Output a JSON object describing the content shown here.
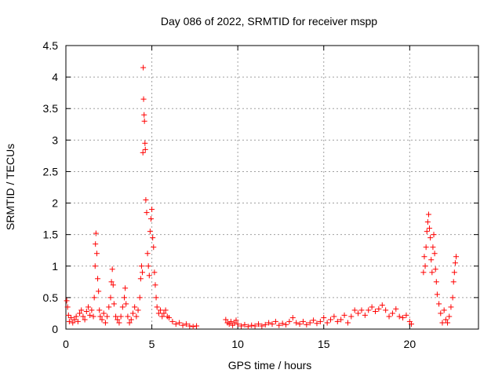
{
  "chart_data": {
    "type": "scatter",
    "title": "Day 086 of 2022, SRMTID for receiver mspp",
    "xlabel": "GPS time / hours",
    "ylabel": "SRMTID / TECUs",
    "xlim": [
      0,
      24
    ],
    "ylim": [
      0,
      4.5
    ],
    "x_ticks": [
      0,
      5,
      10,
      15,
      20
    ],
    "y_ticks": [
      0,
      0.5,
      1,
      1.5,
      2,
      2.5,
      3,
      3.5,
      4,
      4.5
    ],
    "grid": true,
    "marker": "+",
    "marker_color": "#ff0000",
    "series": [
      {
        "name": "SRMTID",
        "points": [
          [
            0.05,
            0.45
          ],
          [
            0.1,
            0.35
          ],
          [
            0.15,
            0.22
          ],
          [
            0.2,
            0.12
          ],
          [
            0.3,
            0.18
          ],
          [
            0.4,
            0.1
          ],
          [
            0.5,
            0.15
          ],
          [
            0.6,
            0.2
          ],
          [
            0.7,
            0.12
          ],
          [
            0.8,
            0.25
          ],
          [
            0.9,
            0.3
          ],
          [
            1.0,
            0.2
          ],
          [
            1.1,
            0.15
          ],
          [
            1.2,
            0.28
          ],
          [
            1.3,
            0.35
          ],
          [
            1.4,
            0.22
          ],
          [
            1.5,
            0.3
          ],
          [
            1.6,
            0.2
          ],
          [
            1.65,
            0.5
          ],
          [
            1.7,
            1.0
          ],
          [
            1.72,
            1.35
          ],
          [
            1.75,
            1.52
          ],
          [
            1.8,
            1.2
          ],
          [
            1.85,
            0.8
          ],
          [
            1.9,
            0.6
          ],
          [
            1.95,
            0.3
          ],
          [
            2.0,
            0.2
          ],
          [
            2.1,
            0.15
          ],
          [
            2.2,
            0.25
          ],
          [
            2.3,
            0.1
          ],
          [
            2.4,
            0.2
          ],
          [
            2.5,
            0.35
          ],
          [
            2.6,
            0.5
          ],
          [
            2.65,
            0.75
          ],
          [
            2.7,
            0.95
          ],
          [
            2.75,
            0.7
          ],
          [
            2.8,
            0.4
          ],
          [
            2.9,
            0.2
          ],
          [
            3.0,
            0.15
          ],
          [
            3.1,
            0.1
          ],
          [
            3.2,
            0.2
          ],
          [
            3.3,
            0.35
          ],
          [
            3.4,
            0.5
          ],
          [
            3.45,
            0.65
          ],
          [
            3.5,
            0.4
          ],
          [
            3.6,
            0.2
          ],
          [
            3.7,
            0.1
          ],
          [
            3.8,
            0.15
          ],
          [
            3.9,
            0.25
          ],
          [
            4.0,
            0.35
          ],
          [
            4.1,
            0.2
          ],
          [
            4.2,
            0.3
          ],
          [
            4.3,
            0.5
          ],
          [
            4.35,
            0.8
          ],
          [
            4.4,
            1.0
          ],
          [
            4.45,
            0.9
          ],
          [
            4.48,
            2.8
          ],
          [
            4.5,
            4.15
          ],
          [
            4.52,
            3.65
          ],
          [
            4.55,
            3.4
          ],
          [
            4.57,
            3.3
          ],
          [
            4.6,
            2.95
          ],
          [
            4.62,
            2.85
          ],
          [
            4.65,
            2.05
          ],
          [
            4.7,
            1.85
          ],
          [
            4.75,
            1.2
          ],
          [
            4.8,
            1.0
          ],
          [
            4.85,
            0.85
          ],
          [
            4.9,
            1.55
          ],
          [
            4.95,
            1.75
          ],
          [
            5.0,
            1.9
          ],
          [
            5.05,
            1.45
          ],
          [
            5.1,
            1.3
          ],
          [
            5.15,
            0.9
          ],
          [
            5.2,
            0.7
          ],
          [
            5.25,
            0.5
          ],
          [
            5.3,
            0.35
          ],
          [
            5.4,
            0.25
          ],
          [
            5.5,
            0.3
          ],
          [
            5.6,
            0.2
          ],
          [
            5.7,
            0.25
          ],
          [
            5.8,
            0.3
          ],
          [
            5.9,
            0.2
          ],
          [
            6.0,
            0.18
          ],
          [
            6.2,
            0.12
          ],
          [
            6.4,
            0.08
          ],
          [
            6.6,
            0.1
          ],
          [
            6.8,
            0.06
          ],
          [
            7.0,
            0.08
          ],
          [
            7.2,
            0.05
          ],
          [
            7.4,
            0.04
          ],
          [
            7.6,
            0.05
          ],
          [
            9.3,
            0.15
          ],
          [
            9.4,
            0.1
          ],
          [
            9.5,
            0.08
          ],
          [
            9.6,
            0.12
          ],
          [
            9.7,
            0.06
          ],
          [
            9.8,
            0.1
          ],
          [
            9.9,
            0.14
          ],
          [
            10.0,
            0.08
          ],
          [
            10.2,
            0.05
          ],
          [
            10.4,
            0.07
          ],
          [
            10.6,
            0.04
          ],
          [
            10.8,
            0.06
          ],
          [
            11.0,
            0.05
          ],
          [
            11.2,
            0.08
          ],
          [
            11.4,
            0.05
          ],
          [
            11.6,
            0.07
          ],
          [
            11.8,
            0.1
          ],
          [
            12.0,
            0.08
          ],
          [
            12.2,
            0.12
          ],
          [
            12.4,
            0.06
          ],
          [
            12.6,
            0.09
          ],
          [
            12.8,
            0.07
          ],
          [
            13.0,
            0.12
          ],
          [
            13.2,
            0.18
          ],
          [
            13.4,
            0.1
          ],
          [
            13.6,
            0.08
          ],
          [
            13.8,
            0.12
          ],
          [
            14.0,
            0.07
          ],
          [
            14.2,
            0.1
          ],
          [
            14.4,
            0.14
          ],
          [
            14.6,
            0.09
          ],
          [
            14.8,
            0.12
          ],
          [
            15.0,
            0.18
          ],
          [
            15.2,
            0.1
          ],
          [
            15.4,
            0.15
          ],
          [
            15.6,
            0.2
          ],
          [
            15.8,
            0.12
          ],
          [
            16.0,
            0.15
          ],
          [
            16.2,
            0.22
          ],
          [
            16.4,
            0.1
          ],
          [
            16.6,
            0.2
          ],
          [
            16.8,
            0.3
          ],
          [
            17.0,
            0.25
          ],
          [
            17.2,
            0.3
          ],
          [
            17.4,
            0.22
          ],
          [
            17.6,
            0.3
          ],
          [
            17.8,
            0.35
          ],
          [
            18.0,
            0.28
          ],
          [
            18.2,
            0.32
          ],
          [
            18.4,
            0.38
          ],
          [
            18.6,
            0.3
          ],
          [
            18.8,
            0.2
          ],
          [
            19.0,
            0.25
          ],
          [
            19.2,
            0.32
          ],
          [
            19.4,
            0.2
          ],
          [
            19.6,
            0.18
          ],
          [
            19.8,
            0.22
          ],
          [
            20.0,
            0.12
          ],
          [
            20.1,
            0.08
          ],
          [
            20.8,
            0.9
          ],
          [
            20.85,
            1.15
          ],
          [
            20.9,
            1.0
          ],
          [
            20.95,
            1.3
          ],
          [
            21.0,
            1.55
          ],
          [
            21.05,
            1.7
          ],
          [
            21.1,
            1.82
          ],
          [
            21.15,
            1.6
          ],
          [
            21.2,
            1.45
          ],
          [
            21.25,
            1.1
          ],
          [
            21.3,
            0.9
          ],
          [
            21.35,
            1.3
          ],
          [
            21.4,
            1.5
          ],
          [
            21.45,
            1.2
          ],
          [
            21.5,
            0.95
          ],
          [
            21.55,
            0.75
          ],
          [
            21.6,
            0.55
          ],
          [
            21.7,
            0.4
          ],
          [
            21.8,
            0.25
          ],
          [
            21.9,
            0.1
          ],
          [
            22.0,
            0.3
          ],
          [
            22.1,
            0.15
          ],
          [
            22.2,
            0.1
          ],
          [
            22.3,
            0.2
          ],
          [
            22.4,
            0.35
          ],
          [
            22.5,
            0.5
          ],
          [
            22.55,
            0.75
          ],
          [
            22.6,
            0.9
          ],
          [
            22.65,
            1.05
          ],
          [
            22.7,
            1.15
          ]
        ]
      }
    ]
  }
}
